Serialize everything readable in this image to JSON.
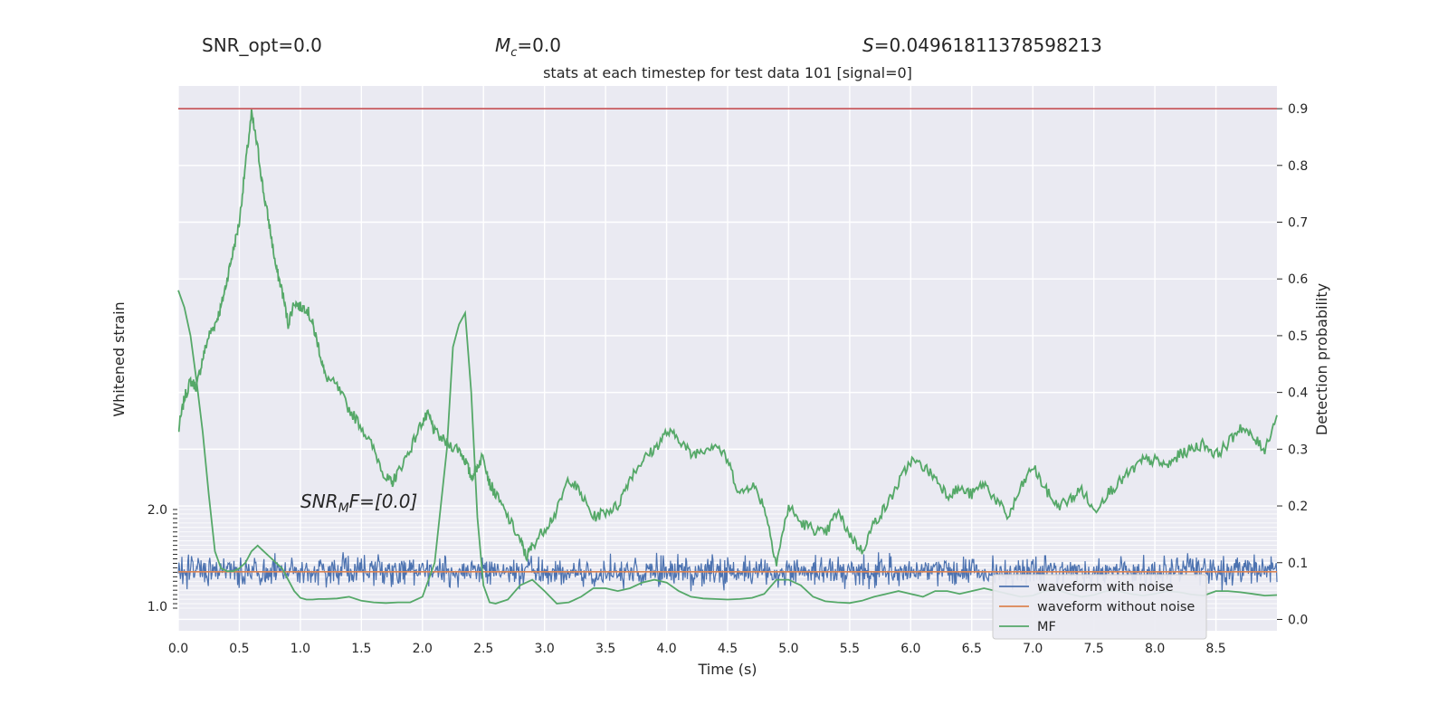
{
  "header": {
    "snr_opt": "SNR_opt=0.0",
    "mc_symbol": "M",
    "mc_sub": "c",
    "mc_value": "=0.0",
    "s_symbol": "S",
    "s_value": "=0.04961811378598213"
  },
  "chart_data": {
    "type": "line",
    "title": "stats at each timestep for test data 101 [signal=0]",
    "xlabel": "Time (s)",
    "ylabel_left": "Whitened strain",
    "ylabel_right": "Detection probability",
    "xlim": [
      0.0,
      9.0
    ],
    "xticks": [
      "0.0",
      "0.5",
      "1.0",
      "1.5",
      "2.0",
      "2.5",
      "3.0",
      "3.5",
      "4.0",
      "4.5",
      "5.0",
      "5.5",
      "6.0",
      "6.5",
      "7.0",
      "7.5",
      "8.0",
      "8.5"
    ],
    "ylim_right": [
      -0.02,
      0.94
    ],
    "yticks_right": [
      "0.0",
      "0.1",
      "0.2",
      "0.3",
      "0.4",
      "0.5",
      "0.6",
      "0.7",
      "0.8",
      "0.9"
    ],
    "threshold": 0.9,
    "annotation": {
      "main": "SNR",
      "sub": "M",
      "rest": "F=[0.0]"
    },
    "left_axis_top_tick": "2.0",
    "left_axis_bottom_tick": "1.0",
    "legend": {
      "placement": "lower-right",
      "entries": [
        "waveform with noise",
        "waveform without noise",
        "MF"
      ]
    },
    "colors": {
      "noise": "#4c72b0",
      "clean": "#dd8452",
      "mf": "#55a868",
      "threshold": "#c44e52",
      "bg": "#eaeaf2"
    },
    "series": [
      {
        "name": "MF",
        "x": [
          0.0,
          0.05,
          0.1,
          0.15,
          0.2,
          0.25,
          0.3,
          0.35,
          0.4,
          0.45,
          0.5,
          0.55,
          0.6,
          0.65,
          0.7,
          0.75,
          0.8,
          0.85,
          0.9,
          0.95,
          1.0,
          1.05,
          1.1,
          1.15,
          1.2,
          1.3,
          1.4,
          1.5,
          1.6,
          1.7,
          1.8,
          1.9,
          2.0,
          2.1,
          2.2,
          2.25,
          2.3,
          2.35,
          2.4,
          2.45,
          2.5,
          2.55,
          2.6,
          2.7,
          2.8,
          2.9,
          3.0,
          3.1,
          3.2,
          3.3,
          3.4,
          3.5,
          3.6,
          3.7,
          3.8,
          3.9,
          4.0,
          4.1,
          4.2,
          4.3,
          4.4,
          4.5,
          4.6,
          4.7,
          4.8,
          4.9,
          5.0,
          5.1,
          5.2,
          5.3,
          5.4,
          5.5,
          5.6,
          5.7,
          5.8,
          5.9,
          6.0,
          6.1,
          6.2,
          6.3,
          6.4,
          6.5,
          6.6,
          6.7,
          6.8,
          6.9,
          7.0,
          7.1,
          7.2,
          7.3,
          7.4,
          7.5,
          7.6,
          7.7,
          7.8,
          7.9,
          8.0,
          8.1,
          8.2,
          8.3,
          8.4,
          8.5,
          8.6,
          8.7,
          8.8,
          8.9,
          9.0
        ],
        "y": [
          0.58,
          0.55,
          0.5,
          0.42,
          0.33,
          0.22,
          0.12,
          0.09,
          0.085,
          0.085,
          0.09,
          0.1,
          0.12,
          0.13,
          0.12,
          0.11,
          0.1,
          0.09,
          0.07,
          0.05,
          0.038,
          0.035,
          0.035,
          0.036,
          0.036,
          0.037,
          0.04,
          0.033,
          0.03,
          0.029,
          0.03,
          0.03,
          0.04,
          0.1,
          0.3,
          0.48,
          0.52,
          0.54,
          0.4,
          0.18,
          0.06,
          0.03,
          0.028,
          0.035,
          0.06,
          0.07,
          0.05,
          0.028,
          0.03,
          0.04,
          0.055,
          0.055,
          0.05,
          0.055,
          0.065,
          0.07,
          0.065,
          0.05,
          0.04,
          0.037,
          0.036,
          0.035,
          0.036,
          0.038,
          0.045,
          0.07,
          0.07,
          0.06,
          0.04,
          0.032,
          0.03,
          0.029,
          0.033,
          0.04,
          0.045,
          0.05,
          0.045,
          0.04,
          0.05,
          0.05,
          0.045,
          0.05,
          0.055,
          0.05,
          0.045,
          0.04,
          0.042,
          0.05,
          0.052,
          0.045,
          0.04,
          0.043,
          0.05,
          0.05,
          0.045,
          0.042,
          0.045,
          0.05,
          0.048,
          0.044,
          0.042,
          0.05,
          0.05,
          0.048,
          0.045,
          0.042,
          0.043
        ]
      },
      {
        "name": "detection probability",
        "x": [
          0.0,
          0.05,
          0.1,
          0.15,
          0.2,
          0.25,
          0.3,
          0.35,
          0.4,
          0.45,
          0.5,
          0.55,
          0.6,
          0.65,
          0.7,
          0.75,
          0.8,
          0.85,
          0.9,
          0.95,
          1.0,
          1.05,
          1.1,
          1.15,
          1.2,
          1.3,
          1.4,
          1.5,
          1.6,
          1.7,
          1.75,
          1.8,
          1.9,
          2.0,
          2.05,
          2.1,
          2.2,
          2.3,
          2.35,
          2.4,
          2.45,
          2.5,
          2.55,
          2.6,
          2.7,
          2.8,
          2.85,
          2.9,
          3.0,
          3.1,
          3.2,
          3.3,
          3.4,
          3.5,
          3.6,
          3.7,
          3.8,
          3.9,
          4.0,
          4.1,
          4.2,
          4.3,
          4.4,
          4.5,
          4.6,
          4.7,
          4.8,
          4.9,
          5.0,
          5.1,
          5.2,
          5.3,
          5.4,
          5.5,
          5.6,
          5.7,
          5.8,
          5.9,
          6.0,
          6.1,
          6.2,
          6.3,
          6.4,
          6.5,
          6.6,
          6.7,
          6.8,
          6.9,
          7.0,
          7.1,
          7.2,
          7.3,
          7.4,
          7.5,
          7.6,
          7.7,
          7.8,
          7.9,
          8.0,
          8.1,
          8.2,
          8.3,
          8.4,
          8.5,
          8.6,
          8.7,
          8.8,
          8.9,
          9.0
        ],
        "y": [
          0.33,
          0.39,
          0.42,
          0.41,
          0.46,
          0.5,
          0.52,
          0.55,
          0.6,
          0.65,
          0.7,
          0.8,
          0.89,
          0.83,
          0.75,
          0.69,
          0.62,
          0.58,
          0.52,
          0.56,
          0.55,
          0.55,
          0.52,
          0.48,
          0.43,
          0.41,
          0.37,
          0.34,
          0.3,
          0.25,
          0.24,
          0.26,
          0.3,
          0.35,
          0.36,
          0.33,
          0.31,
          0.3,
          0.28,
          0.25,
          0.27,
          0.29,
          0.24,
          0.22,
          0.18,
          0.14,
          0.11,
          0.13,
          0.16,
          0.19,
          0.25,
          0.22,
          0.18,
          0.19,
          0.2,
          0.25,
          0.28,
          0.3,
          0.33,
          0.32,
          0.29,
          0.3,
          0.31,
          0.28,
          0.22,
          0.24,
          0.2,
          0.1,
          0.2,
          0.17,
          0.16,
          0.15,
          0.19,
          0.15,
          0.12,
          0.17,
          0.2,
          0.24,
          0.28,
          0.27,
          0.25,
          0.22,
          0.23,
          0.22,
          0.24,
          0.21,
          0.18,
          0.23,
          0.27,
          0.23,
          0.2,
          0.21,
          0.23,
          0.19,
          0.22,
          0.24,
          0.26,
          0.28,
          0.28,
          0.27,
          0.29,
          0.3,
          0.31,
          0.29,
          0.31,
          0.34,
          0.32,
          0.3,
          0.36
        ]
      },
      {
        "name": "waveform without noise",
        "x": [
          0.0,
          9.0
        ],
        "y": [
          0.084,
          0.084
        ]
      }
    ]
  }
}
